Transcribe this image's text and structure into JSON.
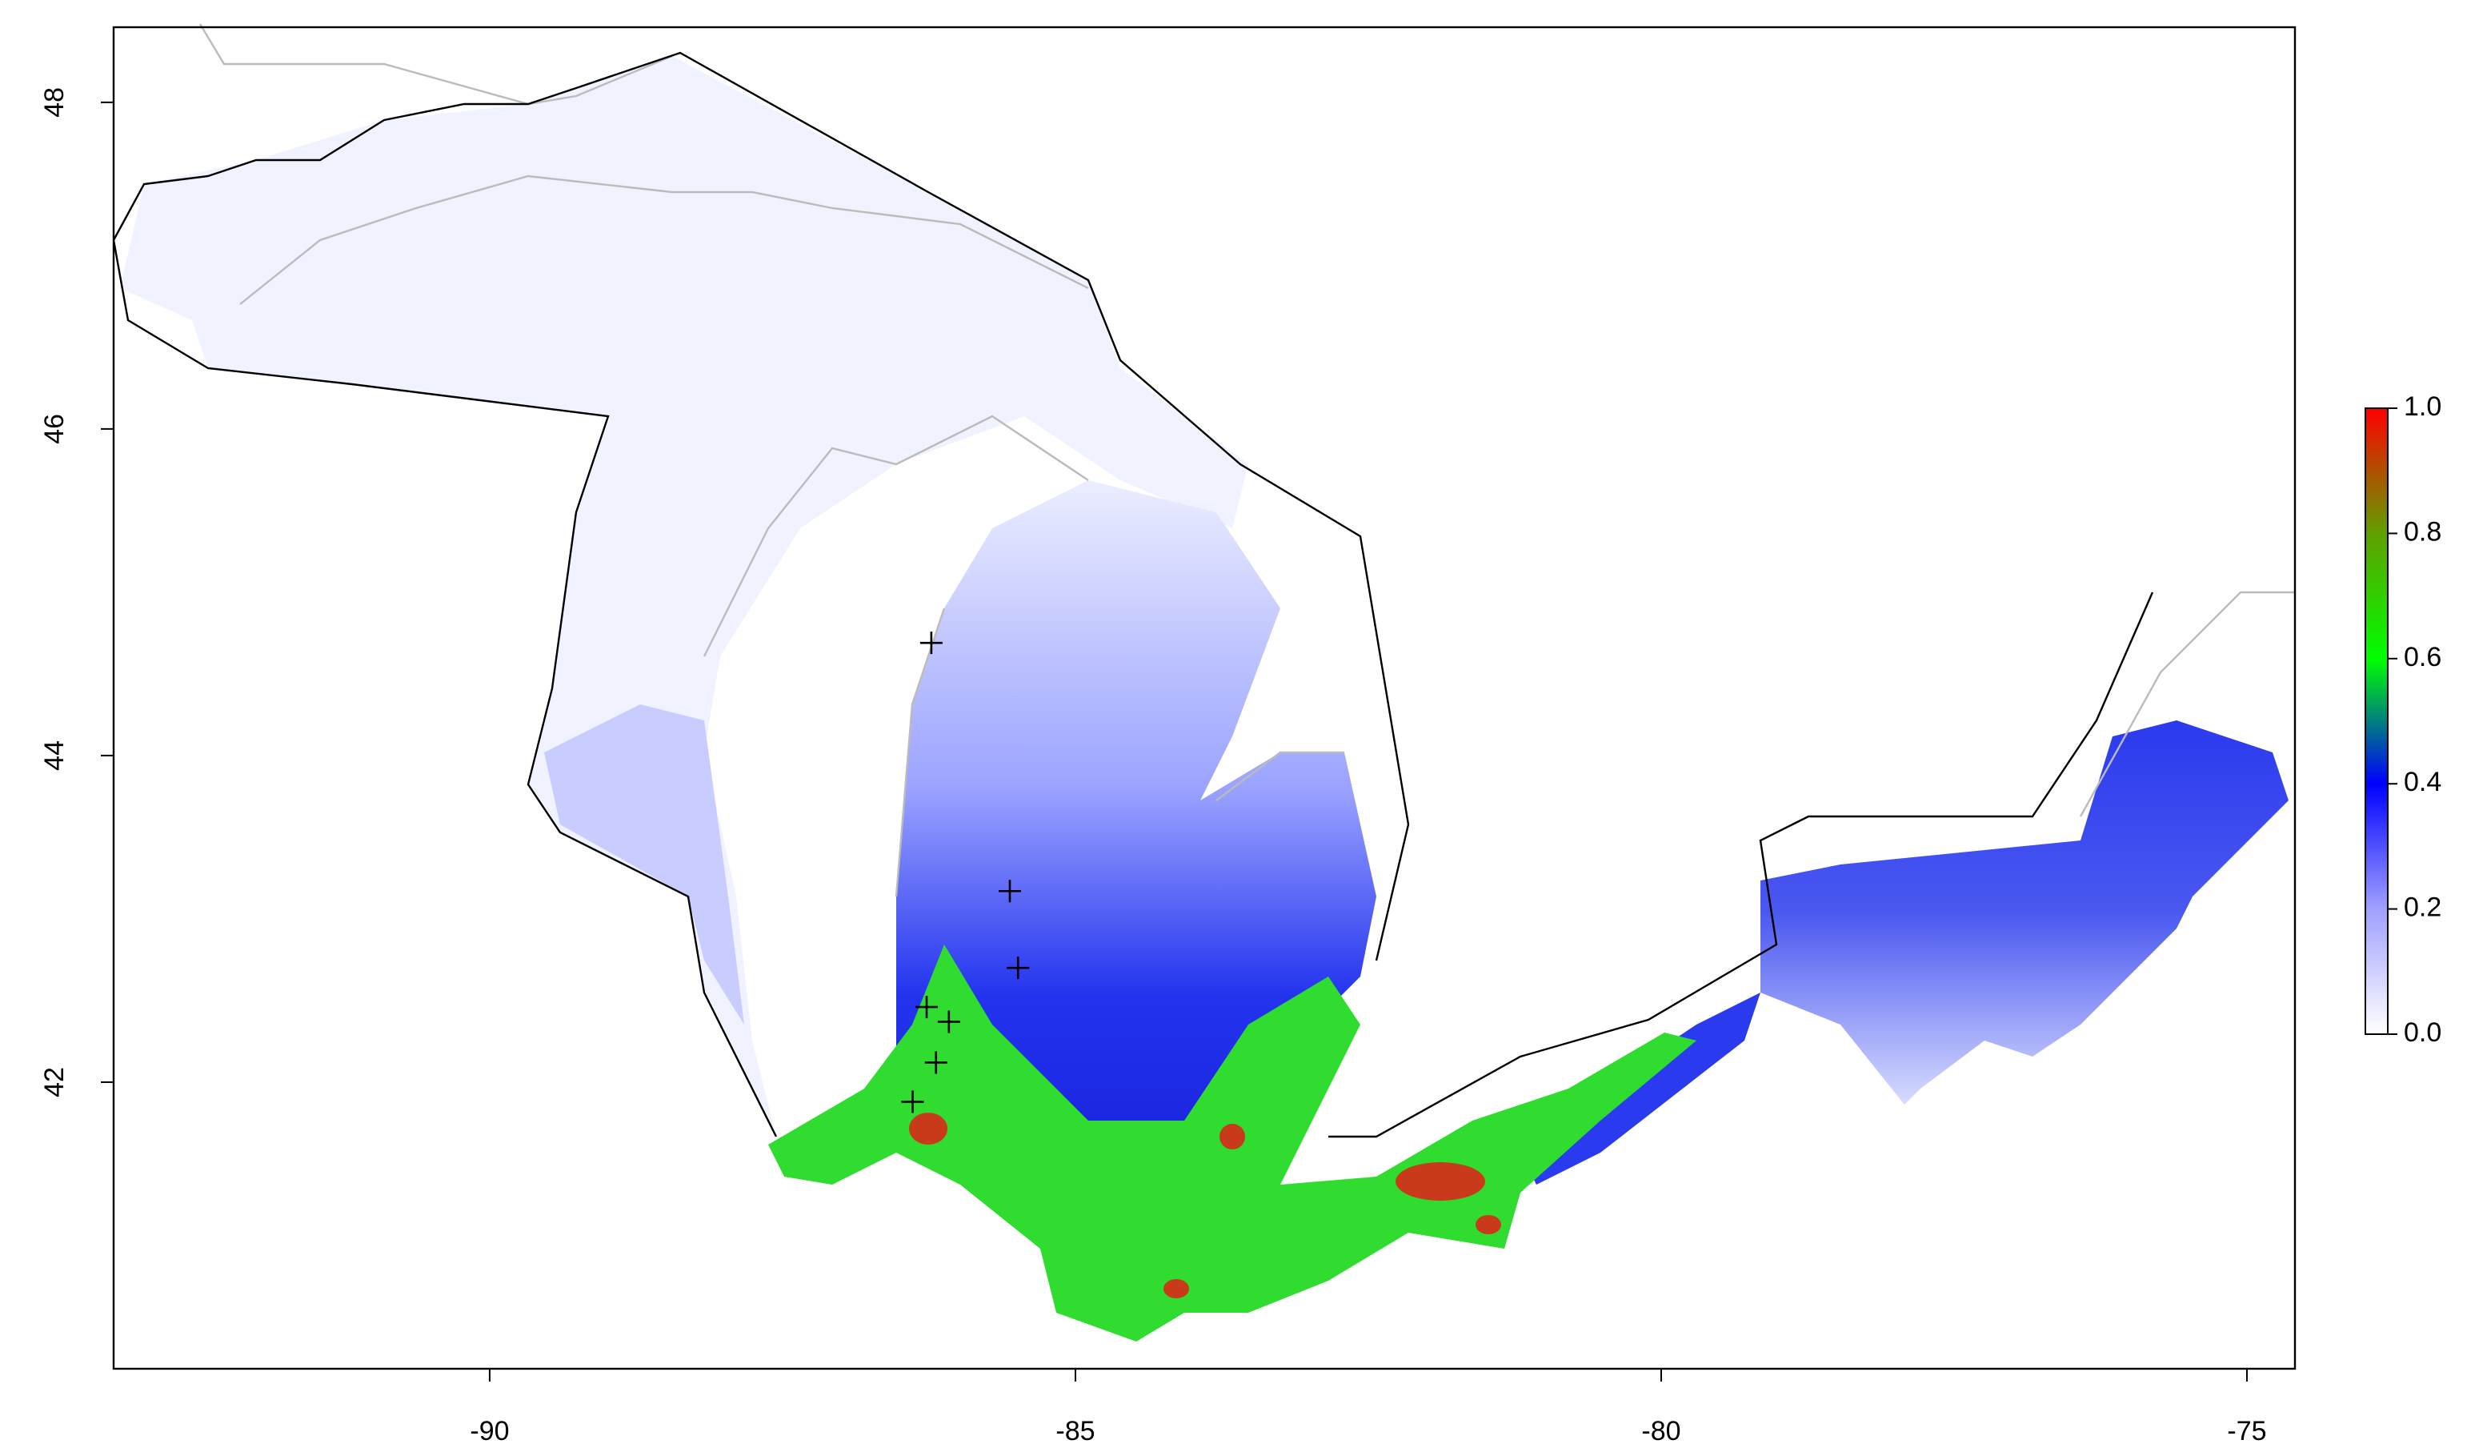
{
  "chart_data": {
    "type": "scatter",
    "xlim": [
      -93.21,
      -74.59
    ],
    "ylim": [
      40.245,
      48.46
    ],
    "xticks": [
      -90,
      -85,
      -80,
      -75
    ],
    "yticks": [
      42,
      44,
      46,
      48
    ],
    "points": {
      "color": "#000000",
      "x": [
        -86.23,
        -85.56,
        -85.49,
        -86.27,
        -86.08,
        -86.19,
        -86.39
      ],
      "y": [
        44.69,
        43.17,
        42.7,
        42.46,
        42.37,
        42.12,
        41.88
      ]
    },
    "colorbar": {
      "colors": [
        "#ffffff",
        "#a0a0ff",
        "#0000ff",
        "#00ff00",
        "#60a000",
        "#ff0000"
      ],
      "ylim": [
        0,
        1
      ],
      "ticks": [
        {
          "value": 0,
          "label": "0.0"
        },
        0.2,
        0.4,
        0.6,
        0.8,
        {
          "value": 1,
          "label": "1.0"
        }
      ]
    }
  }
}
